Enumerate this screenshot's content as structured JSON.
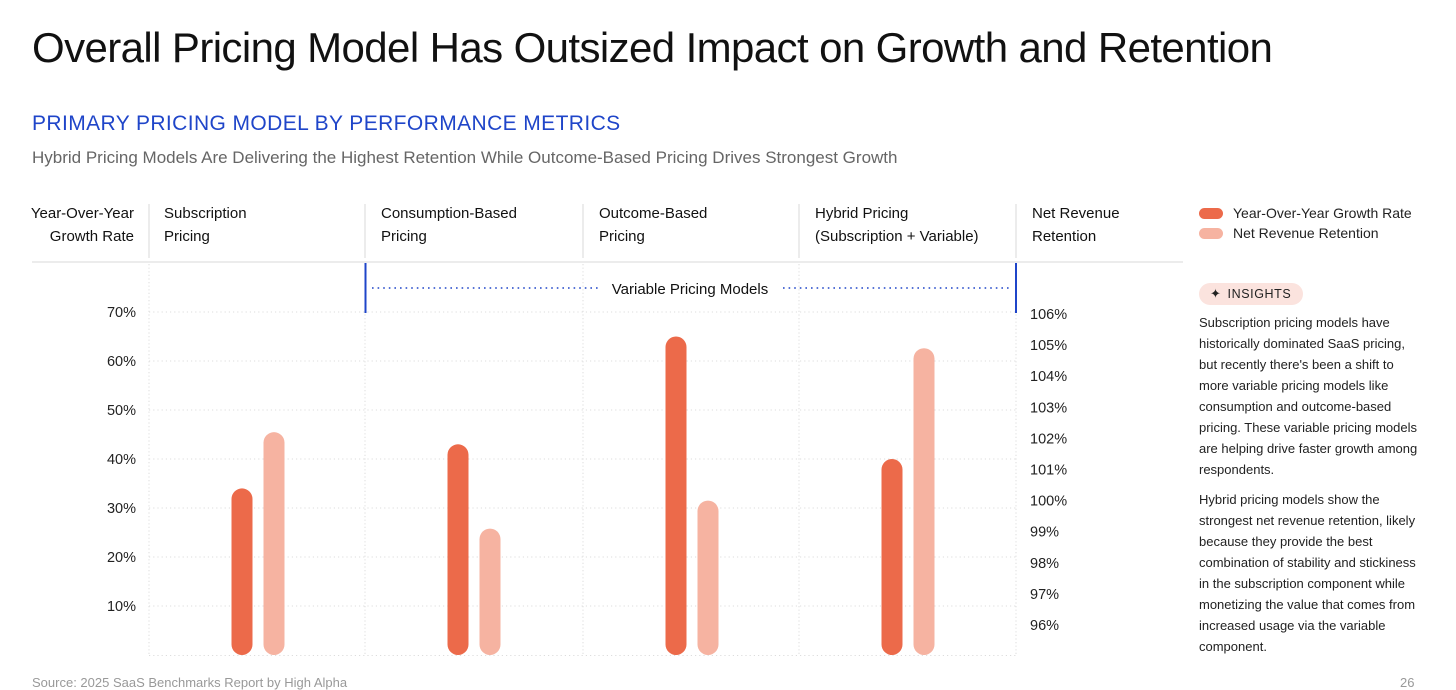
{
  "page": {
    "title": "Overall Pricing Model Has Outsized Impact on Growth and Retention",
    "subtitle": "PRIMARY PRICING MODEL BY PERFORMANCE METRICS",
    "tagline": "Hybrid Pricing Models Are Delivering the Highest Retention While Outcome-Based Pricing Drives Strongest Growth",
    "footer_source": "Source: 2025 SaaS Benchmarks Report by High Alpha",
    "page_number": "26"
  },
  "legend": {
    "growth_label": "Year-Over-Year Growth Rate",
    "nrr_label": "Net Revenue Retention"
  },
  "insights": {
    "badge_icon": "sparkle-icon",
    "badge_label": "INSIGHTS",
    "paragraph_1": "Subscription pricing models have historically dominated SaaS pricing, but recently there's been a shift to more variable pricing models like consumption and outcome-based pricing. These variable pricing models are helping drive faster growth among respondents.",
    "paragraph_2": "Hybrid pricing models show the strongest net revenue retention, likely because they provide the best combination of stability and stickiness in the subscription component while monetizing the value that comes from increased usage via the variable component."
  },
  "colors": {
    "growth": "#ec6a4a",
    "nrr": "#f6b3a1",
    "accent_blue": "#1f45c9",
    "grid": "#d8d8d8"
  },
  "chart_data": {
    "type": "bar",
    "categories": [
      [
        "Subscription",
        "Pricing"
      ],
      [
        "Consumption-Based",
        "Pricing"
      ],
      [
        "Outcome-Based",
        "Pricing"
      ],
      [
        "Hybrid Pricing",
        "(Subscription + Variable)"
      ]
    ],
    "left_axis_label": [
      "Year-Over-Year",
      "Growth Rate"
    ],
    "right_axis_label": [
      "Net Revenue",
      "Retention"
    ],
    "left_ticks": [
      "10%",
      "20%",
      "30%",
      "40%",
      "50%",
      "60%",
      "70%"
    ],
    "right_ticks": [
      "96%",
      "97%",
      "98%",
      "99%",
      "100%",
      "101%",
      "102%",
      "103%",
      "104%",
      "105%",
      "106%"
    ],
    "left_ylim": [
      0,
      70
    ],
    "right_ylim": [
      95,
      106
    ],
    "grouping_label": "Variable Pricing Models",
    "series": [
      {
        "name": "Year-Over-Year Growth Rate",
        "axis": "left",
        "values": [
          34,
          43,
          65,
          40
        ]
      },
      {
        "name": "Net Revenue Retention",
        "axis": "right",
        "values": [
          102.2,
          99.1,
          100.0,
          104.9
        ]
      }
    ]
  }
}
